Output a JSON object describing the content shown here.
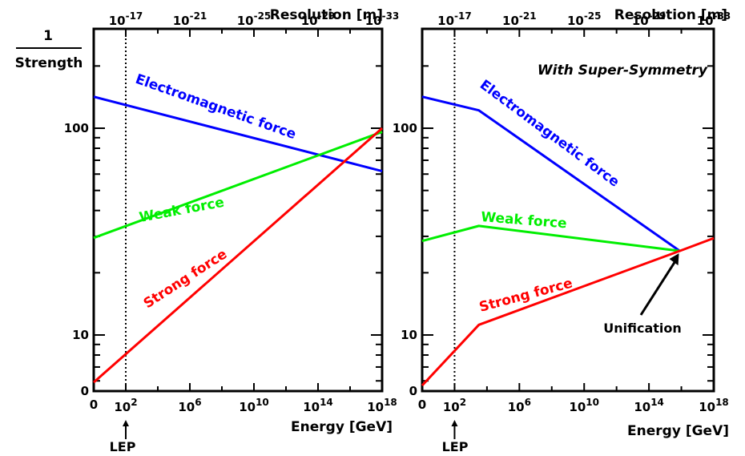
{
  "chart_data": [
    {
      "type": "line",
      "title": "",
      "xlabel": "Energy [GeV]",
      "ylabel": "1 / Strength",
      "ylabel_top": "1",
      "ylabel_bottom": "Strength",
      "top_axis_label": "Resolution [m]",
      "x_scale": "log10 energy exponent",
      "xlim": [
        0,
        18
      ],
      "x_ticks": [
        "0",
        "10^2",
        "10^6",
        "10^10",
        "10^14",
        "10^18"
      ],
      "top_ticks": [
        "10^-17",
        "10^-21",
        "10^-25",
        "10^-29",
        "10^-33"
      ],
      "y_scale": "log",
      "y_ticks": [
        "0",
        "10",
        "100"
      ],
      "series": [
        {
          "name": "Electromagnetic force",
          "color": "#0000ff",
          "x": [
            0,
            18
          ],
          "y": [
            142,
            62
          ]
        },
        {
          "name": "Weak force",
          "color": "#00ee00",
          "x": [
            0,
            18
          ],
          "y": [
            29.5,
            96
          ]
        },
        {
          "name": "Strong force",
          "color": "#ff0000",
          "x": [
            0,
            18
          ],
          "y": [
            5.9,
            100
          ]
        }
      ],
      "reference_line": {
        "x": 2,
        "style": "dotted",
        "label": "LEP"
      },
      "annotations": []
    },
    {
      "type": "line",
      "title": "",
      "xlabel": "Energy [GeV]",
      "ylabel": "",
      "top_axis_label": "Resolution [m]",
      "note": "With Super-Symmetry",
      "x_scale": "log10 energy exponent",
      "xlim": [
        0,
        18
      ],
      "x_ticks": [
        "0",
        "10^2",
        "10^6",
        "10^10",
        "10^14",
        "10^18"
      ],
      "top_ticks": [
        "10^-17",
        "10^-21",
        "10^-25",
        "10^-29",
        "10^-33"
      ],
      "y_scale": "log",
      "y_ticks": [
        "0",
        "10",
        "100"
      ],
      "series": [
        {
          "name": "Electromagnetic force",
          "color": "#0000ff",
          "x": [
            0,
            3.5,
            15.9
          ],
          "y": [
            142,
            122,
            25.5
          ]
        },
        {
          "name": "Weak force",
          "color": "#00ee00",
          "x": [
            0,
            3.5,
            15.9
          ],
          "y": [
            28.5,
            33.7,
            25.5
          ]
        },
        {
          "name": "Strong force",
          "color": "#ff0000",
          "x": [
            0,
            3.5,
            15.9,
            18
          ],
          "y": [
            5.7,
            11.2,
            25.5,
            29.4
          ]
        }
      ],
      "reference_line": {
        "x": 2,
        "style": "dotted",
        "label": "LEP"
      },
      "annotations": [
        {
          "text": "Unification",
          "x": 15.9,
          "y": 25.5
        }
      ]
    }
  ]
}
